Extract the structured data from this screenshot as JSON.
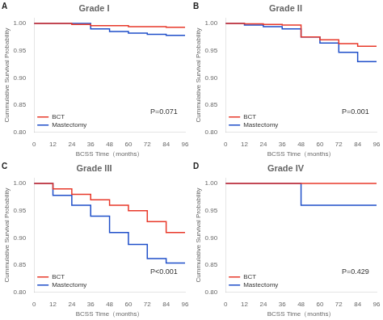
{
  "chart_data": [
    {
      "type": "step",
      "title": "Grade I",
      "xlabel": "BCSS Time（months）",
      "ylabel": "Cummulative Survival Probability",
      "annotations": [
        "A",
        "P=0.071"
      ],
      "xlim": [
        0,
        96
      ],
      "xticks": [
        0,
        12,
        24,
        36,
        48,
        60,
        72,
        84,
        96
      ],
      "ylim": [
        0.8,
        1.01
      ],
      "yticks": [
        {
          "value": 0.8,
          "label": "0.80"
        },
        0.85,
        {
          "value": 0.9,
          "label": "0.90"
        },
        0.95,
        {
          "value": 1.0,
          "label": "1.00"
        }
      ],
      "grid": false,
      "legend": "lower left",
      "series": [
        {
          "name": "BCT",
          "color": "#e8392a",
          "x": [
            0,
            24,
            24,
            36,
            36,
            60,
            60,
            84,
            84,
            96
          ],
          "values": [
            1.0,
            1.0,
            0.998,
            0.998,
            0.996,
            0.996,
            0.994,
            0.994,
            0.993,
            0.993
          ]
        },
        {
          "name": "Mastectomy",
          "color": "#1f4fc9",
          "x": [
            0,
            36,
            36,
            48,
            48,
            60,
            60,
            72,
            72,
            84,
            84,
            96
          ],
          "values": [
            1.0,
            1.0,
            0.99,
            0.99,
            0.985,
            0.985,
            0.982,
            0.982,
            0.98,
            0.98,
            0.978,
            0.978
          ]
        }
      ]
    },
    {
      "type": "step",
      "title": "Grade II",
      "xlabel": "BCSS Time（months）",
      "ylabel": "Cummulative Survival Probability",
      "annotations": [
        "B",
        "P=0.001"
      ],
      "xlim": [
        0,
        96
      ],
      "xticks": [
        0,
        12,
        24,
        36,
        48,
        60,
        72,
        84,
        96
      ],
      "ylim": [
        0.8,
        1.01
      ],
      "yticks": [
        {
          "value": 0.8,
          "label": "0.80"
        },
        0.85,
        {
          "value": 0.9,
          "label": "0.90"
        },
        0.95,
        {
          "value": 1.0,
          "label": "1.00"
        }
      ],
      "grid": false,
      "legend": "lower left",
      "series": [
        {
          "name": "BCT",
          "color": "#e8392a",
          "x": [
            0,
            12,
            12,
            24,
            24,
            36,
            36,
            48,
            48,
            60,
            60,
            72,
            72,
            84,
            84,
            96
          ],
          "values": [
            1.0,
            1.0,
            0.999,
            0.999,
            0.998,
            0.998,
            0.997,
            0.997,
            0.975,
            0.975,
            0.97,
            0.97,
            0.963,
            0.963,
            0.958,
            0.958
          ]
        },
        {
          "name": "Mastectomy",
          "color": "#1f4fc9",
          "x": [
            0,
            12,
            12,
            24,
            24,
            36,
            36,
            48,
            48,
            60,
            60,
            72,
            72,
            84,
            84,
            96
          ],
          "values": [
            1.0,
            1.0,
            0.997,
            0.997,
            0.994,
            0.994,
            0.99,
            0.99,
            0.975,
            0.975,
            0.964,
            0.964,
            0.947,
            0.947,
            0.93,
            0.93
          ]
        }
      ]
    },
    {
      "type": "step",
      "title": "Grade III",
      "xlabel": "BCSS Time（months）",
      "ylabel": "Cummulative Survival Probability",
      "annotations": [
        "C",
        "P<0.001"
      ],
      "xlim": [
        0,
        96
      ],
      "xticks": [
        0,
        12,
        24,
        36,
        48,
        60,
        72,
        84,
        96
      ],
      "ylim": [
        0.8,
        1.01
      ],
      "yticks": [
        {
          "value": 0.8,
          "label": "0.80"
        },
        0.85,
        {
          "value": 0.9,
          "label": "0.90"
        },
        0.95,
        {
          "value": 1.0,
          "label": "1.00"
        }
      ],
      "grid": false,
      "legend": "lower left",
      "series": [
        {
          "name": "BCT",
          "color": "#e8392a",
          "x": [
            0,
            12,
            12,
            24,
            24,
            36,
            36,
            48,
            48,
            60,
            60,
            72,
            72,
            84,
            84,
            96
          ],
          "values": [
            1.0,
            1.0,
            0.99,
            0.99,
            0.98,
            0.98,
            0.97,
            0.97,
            0.96,
            0.96,
            0.95,
            0.95,
            0.93,
            0.93,
            0.91,
            0.91
          ]
        },
        {
          "name": "Mastectomy",
          "color": "#1f4fc9",
          "x": [
            0,
            12,
            12,
            24,
            24,
            36,
            36,
            48,
            48,
            60,
            60,
            72,
            72,
            84,
            84,
            96
          ],
          "values": [
            1.0,
            1.0,
            0.978,
            0.978,
            0.96,
            0.96,
            0.94,
            0.94,
            0.91,
            0.91,
            0.888,
            0.888,
            0.862,
            0.862,
            0.854,
            0.854
          ]
        }
      ]
    },
    {
      "type": "step",
      "title": "Grade IV",
      "xlabel": "BCSS Time（months）",
      "ylabel": "Cummulative Survival Probability",
      "annotations": [
        "D",
        "P=0.429"
      ],
      "xlim": [
        0,
        96
      ],
      "xticks": [
        0,
        12,
        24,
        36,
        48,
        60,
        72,
        84,
        96
      ],
      "ylim": [
        0.8,
        1.01
      ],
      "yticks": [
        {
          "value": 0.8,
          "label": "0.80"
        },
        0.85,
        {
          "value": 0.9,
          "label": "0.90"
        },
        0.95,
        {
          "value": 1.0,
          "label": "1.00"
        }
      ],
      "grid": false,
      "legend": "lower left",
      "series": [
        {
          "name": "BCT",
          "color": "#e8392a",
          "x": [
            0,
            60,
            60,
            96
          ],
          "values": [
            1.0,
            1.0,
            1.0,
            1.0
          ]
        },
        {
          "name": "Mastectomy",
          "color": "#1f4fc9",
          "x": [
            0,
            48,
            48,
            84,
            84,
            96
          ],
          "values": [
            1.0,
            1.0,
            0.96,
            0.96,
            0.96,
            0.96
          ]
        }
      ]
    }
  ]
}
